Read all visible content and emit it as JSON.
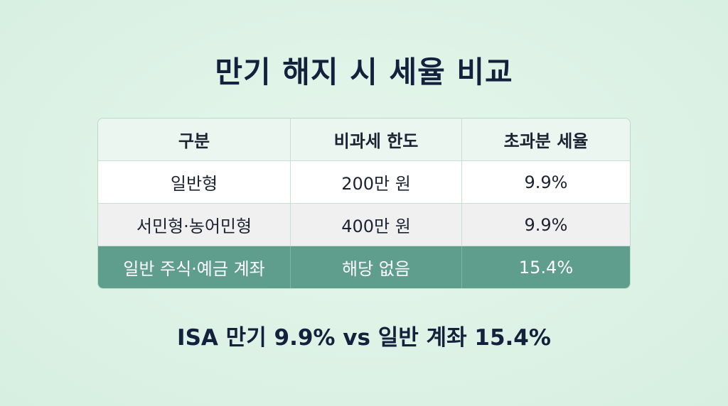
{
  "header": {
    "title": "만기 해지 시 세율 비교"
  },
  "table": {
    "columns": [
      "구분",
      "비과세 한도",
      "초과분 세율"
    ],
    "rows": [
      [
        "일반형",
        "200만 원",
        "9.9%"
      ],
      [
        "서민형·농어민형",
        "400만 원",
        "9.9%"
      ],
      [
        "일반 주식·예금 계좌",
        "해당 없음",
        "15.4%"
      ]
    ]
  },
  "footer": {
    "note": "ISA 만기 9.9% vs 일반 계좌 15.4%"
  }
}
